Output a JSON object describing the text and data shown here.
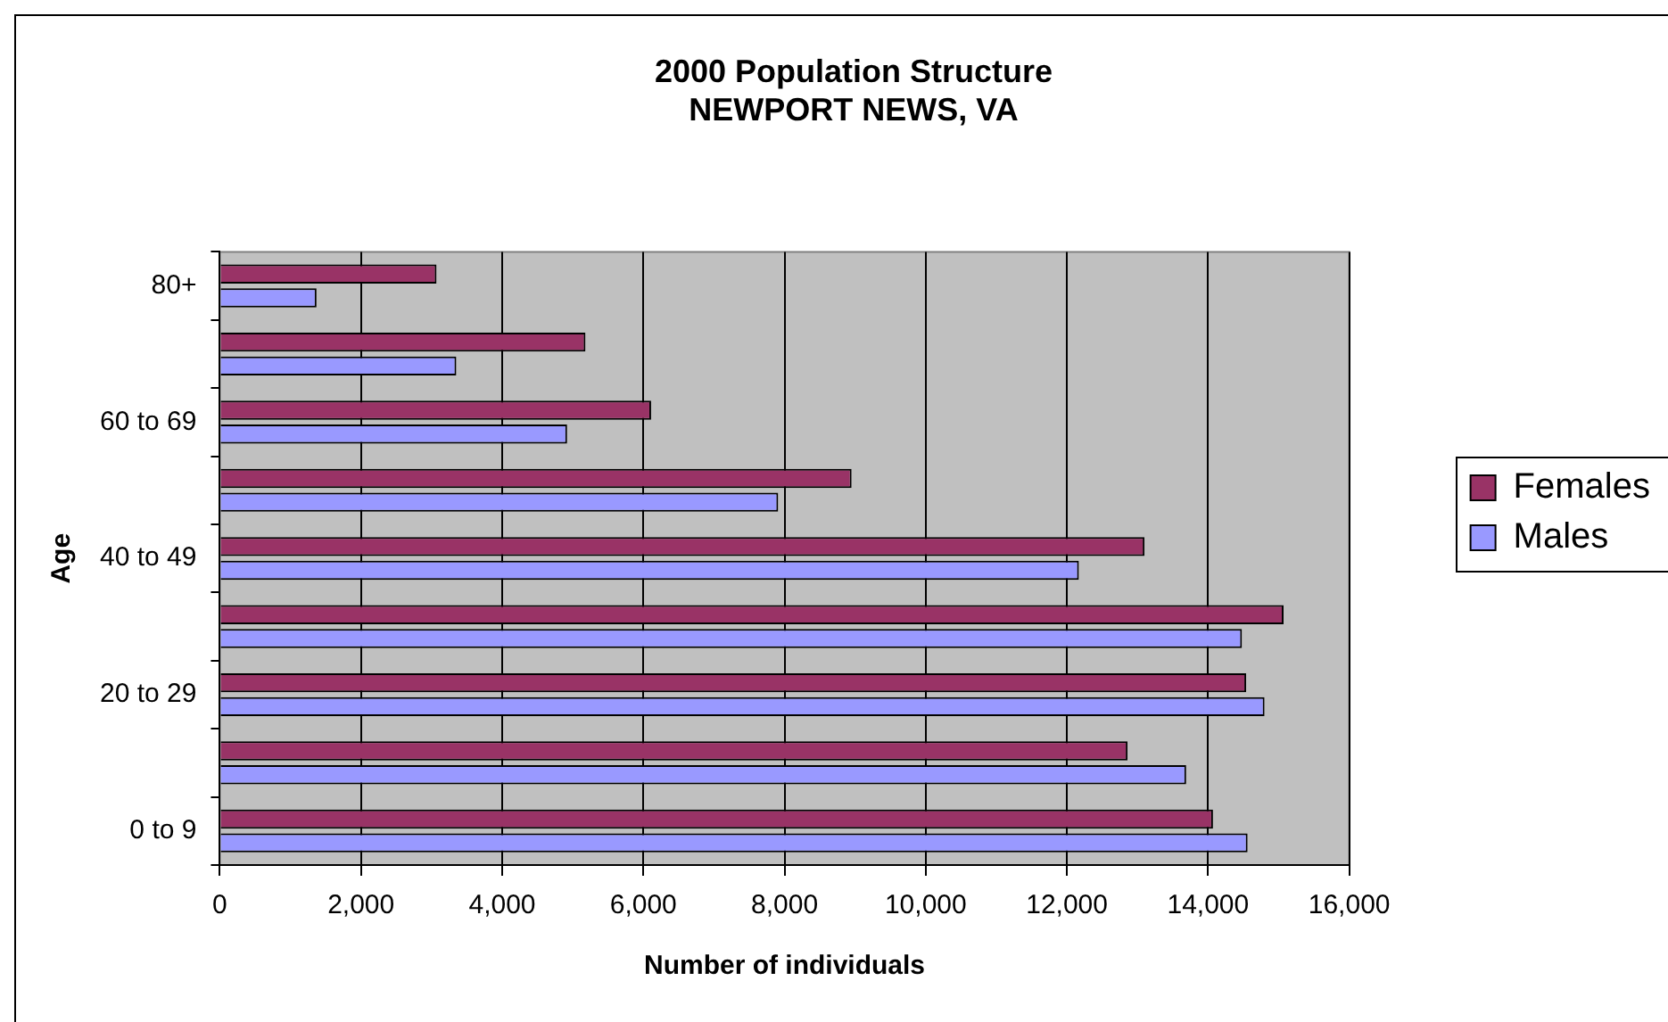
{
  "chart_data": {
    "type": "bar",
    "orientation": "horizontal",
    "title": "2000 Population Structure\nNEWPORT NEWS, VA",
    "xlabel": "Number of individuals",
    "ylabel": "Age",
    "categories": [
      "80+",
      null,
      "60 to 69",
      null,
      "40 to 49",
      null,
      "20 to 29",
      null,
      "0 to 9"
    ],
    "series": [
      {
        "name": "Females",
        "color": "#993366",
        "values": [
          3070,
          5180,
          6110,
          8950,
          13100,
          15070,
          14540,
          12860,
          14070
        ]
      },
      {
        "name": "Males",
        "color": "#9999ff",
        "values": [
          1370,
          3350,
          4920,
          7910,
          12170,
          14480,
          14800,
          13690,
          14560
        ]
      }
    ],
    "xlim": [
      0,
      16000
    ],
    "xticks": [
      0,
      {
        "value": 2000,
        "label": "2,000"
      },
      {
        "value": 4000,
        "label": "4,000"
      },
      {
        "value": 6000,
        "label": "6,000"
      },
      {
        "value": 8000,
        "label": "8,000"
      },
      {
        "value": 10000,
        "label": "10,000"
      },
      {
        "value": 12000,
        "label": "12,000"
      },
      {
        "value": 14000,
        "label": "14,000"
      },
      {
        "value": 16000,
        "label": "16,000"
      }
    ],
    "grid": "x",
    "legend": "right"
  }
}
